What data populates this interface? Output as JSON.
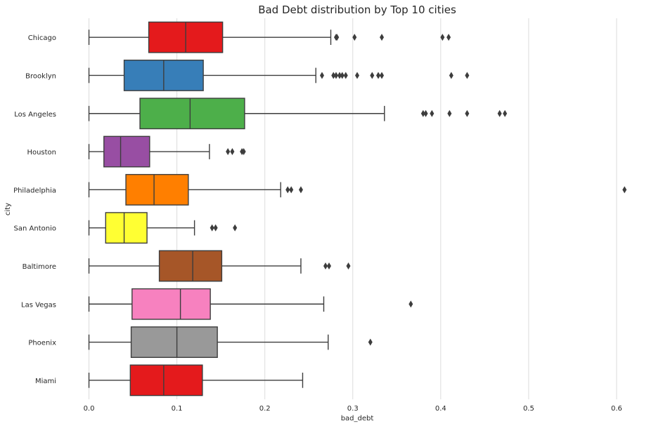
{
  "chart_data": {
    "type": "boxplot",
    "orientation": "horizontal",
    "title": "Bad Debt distribution by Top 10 cities",
    "xlabel": "bad_debt",
    "ylabel": "city",
    "xlim": [
      -0.03,
      0.64
    ],
    "xticks": [
      0.0,
      0.1,
      0.2,
      0.3,
      0.4,
      0.5,
      0.6
    ],
    "xtick_labels": [
      "0.0",
      "0.1",
      "0.2",
      "0.3",
      "0.4",
      "0.5",
      "0.6"
    ],
    "grid": true,
    "categories": [
      "Chicago",
      "Brooklyn",
      "Los Angeles",
      "Houston",
      "Philadelphia",
      "San Antonio",
      "Baltimore",
      "Las Vegas",
      "Phoenix",
      "Miami"
    ],
    "series": [
      {
        "min": 0.0,
        "q1": 0.068,
        "median": 0.11,
        "q3": 0.152,
        "max": 0.275,
        "outliers": [
          0.281,
          0.282,
          0.302,
          0.333,
          0.402,
          0.409
        ],
        "color": "#e41a1c"
      },
      {
        "min": 0.0,
        "q1": 0.04,
        "median": 0.085,
        "q3": 0.13,
        "max": 0.258,
        "outliers": [
          0.265,
          0.278,
          0.281,
          0.285,
          0.288,
          0.292,
          0.305,
          0.322,
          0.329,
          0.333,
          0.412,
          0.43
        ],
        "color": "#377eb8"
      },
      {
        "min": 0.0,
        "q1": 0.058,
        "median": 0.115,
        "q3": 0.177,
        "max": 0.336,
        "outliers": [
          0.38,
          0.383,
          0.39,
          0.41,
          0.43,
          0.467,
          0.473
        ],
        "color": "#4daf4a"
      },
      {
        "min": 0.0,
        "q1": 0.017,
        "median": 0.036,
        "q3": 0.069,
        "max": 0.137,
        "outliers": [
          0.158,
          0.163,
          0.174,
          0.176
        ],
        "color": "#984ea3"
      },
      {
        "min": 0.0,
        "q1": 0.042,
        "median": 0.074,
        "q3": 0.113,
        "max": 0.218,
        "outliers": [
          0.226,
          0.23,
          0.241,
          0.609
        ],
        "color": "#ff7f00"
      },
      {
        "min": 0.0,
        "q1": 0.019,
        "median": 0.04,
        "q3": 0.066,
        "max": 0.12,
        "outliers": [
          0.14,
          0.144,
          0.166
        ],
        "color": "#ffff33"
      },
      {
        "min": 0.0,
        "q1": 0.08,
        "median": 0.118,
        "q3": 0.151,
        "max": 0.241,
        "outliers": [
          0.269,
          0.273,
          0.295
        ],
        "color": "#a65628"
      },
      {
        "min": 0.0,
        "q1": 0.049,
        "median": 0.104,
        "q3": 0.138,
        "max": 0.267,
        "outliers": [
          0.366
        ],
        "color": "#f781bf"
      },
      {
        "min": 0.0,
        "q1": 0.048,
        "median": 0.1,
        "q3": 0.146,
        "max": 0.272,
        "outliers": [
          0.32
        ],
        "color": "#999999"
      },
      {
        "min": 0.0,
        "q1": 0.047,
        "median": 0.085,
        "q3": 0.129,
        "max": 0.243,
        "outliers": [],
        "color": "#e41a1c"
      }
    ]
  }
}
